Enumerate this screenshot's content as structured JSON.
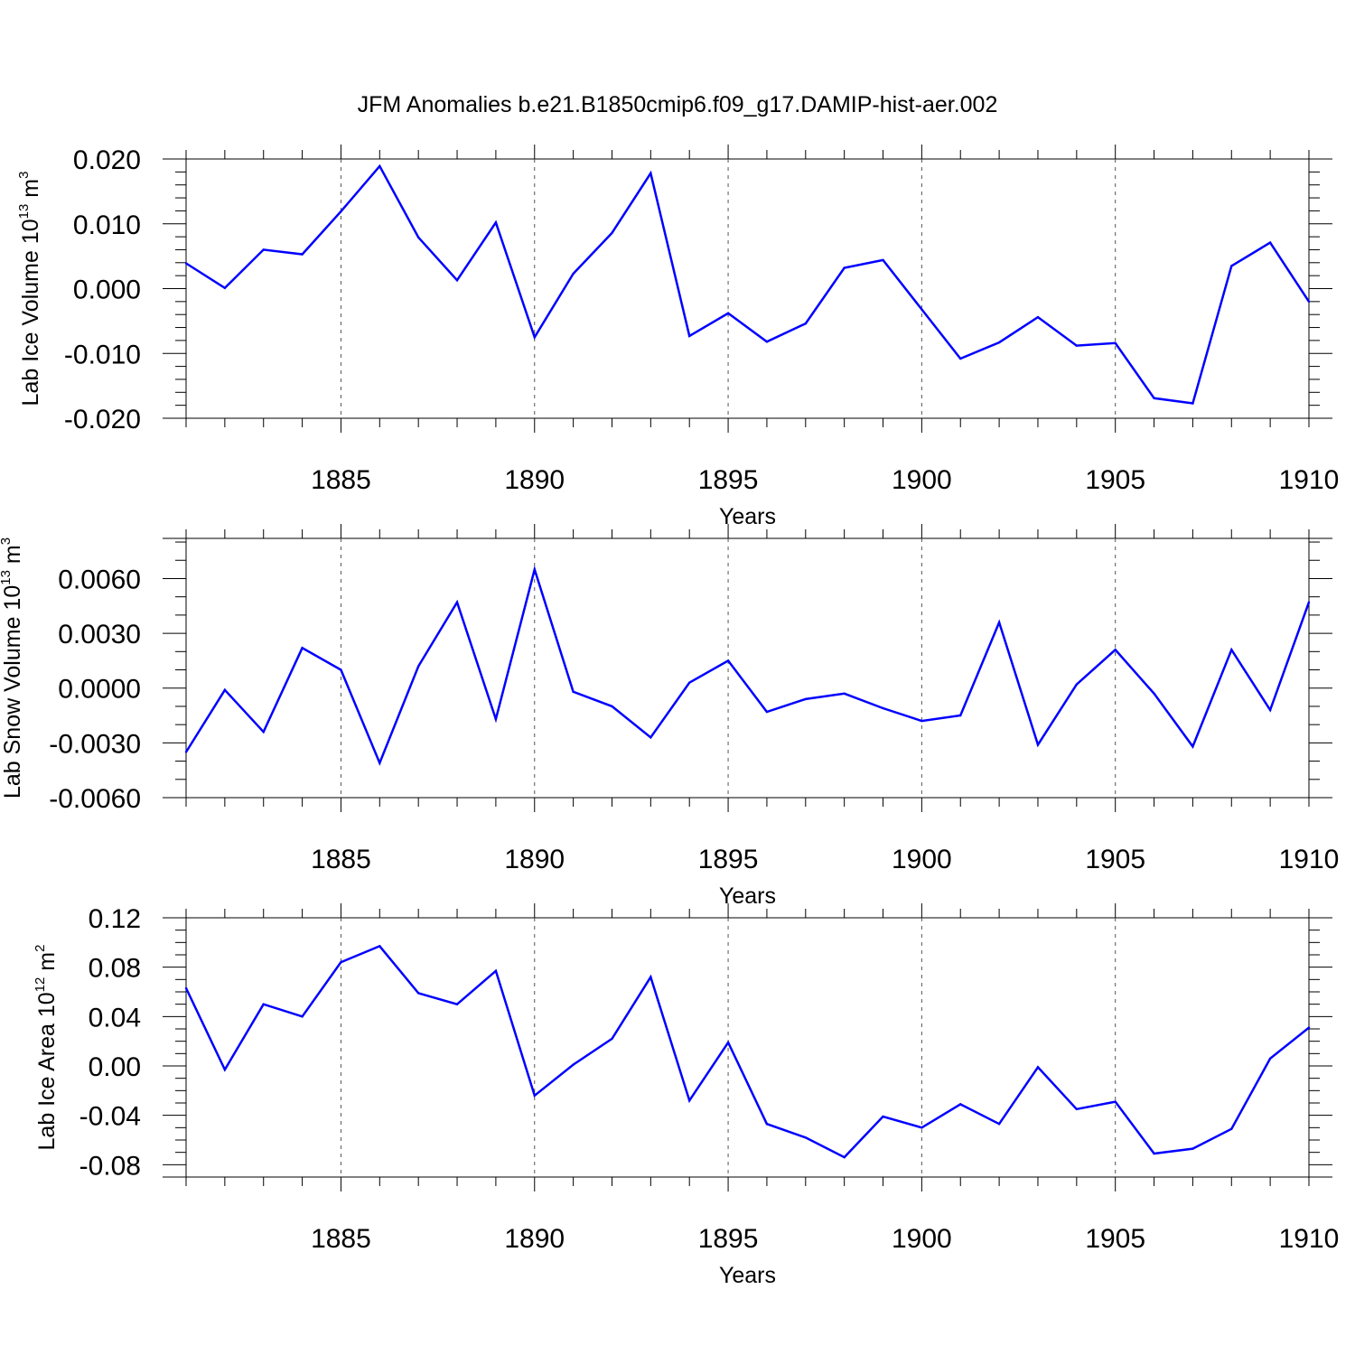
{
  "figure_title": "JFM Anomalies b.e21.B1850cmip6.f09_g17.DAMIP-hist-aer.002",
  "line_color": "#0000ff",
  "chart_data": [
    {
      "type": "line",
      "ylabel_main": "Lab Ice Volume 10",
      "ylabel_exp": "13",
      "ylabel_unit": " m",
      "ylabel_unit_exp": "3",
      "xlabel": "Years",
      "xlim": [
        1881,
        1910
      ],
      "ylim": [
        -0.02,
        0.02
      ],
      "x_ticks": [
        "1885",
        "1890",
        "1895",
        "1900",
        "1905",
        "1910"
      ],
      "y_ticks": [
        "0.020",
        "0.010",
        "0.000",
        "-0.010",
        "-0.020"
      ],
      "y_tick_values": [
        0.02,
        0.01,
        0.0,
        -0.01,
        -0.02
      ],
      "minor_y_step": 0.002,
      "x_grid": [
        1885,
        1890,
        1895,
        1900,
        1905
      ],
      "x": [
        1881,
        1882,
        1883,
        1884,
        1885,
        1886,
        1887,
        1888,
        1889,
        1890,
        1891,
        1892,
        1893,
        1894,
        1895,
        1896,
        1897,
        1898,
        1899,
        1900,
        1901,
        1902,
        1903,
        1904,
        1905,
        1906,
        1907,
        1908,
        1909,
        1910
      ],
      "values": [
        0.0039,
        0.0001,
        0.006,
        0.0053,
        0.0119,
        0.0189,
        0.0079,
        0.0013,
        0.0102,
        -0.0075,
        0.0023,
        0.0086,
        0.0178,
        -0.0073,
        -0.0038,
        -0.0082,
        -0.0054,
        0.0032,
        0.0044,
        -0.0032,
        -0.0108,
        -0.0083,
        -0.0044,
        -0.0088,
        -0.0084,
        -0.0169,
        -0.0177,
        0.0035,
        0.0071,
        -0.002
      ]
    },
    {
      "type": "line",
      "ylabel_main": "Lab Snow Volume 10",
      "ylabel_exp": "13",
      "ylabel_unit": " m",
      "ylabel_unit_exp": "3",
      "xlabel": "Years",
      "xlim": [
        1881,
        1910
      ],
      "ylim": [
        -0.006,
        0.0082
      ],
      "x_ticks": [
        "1885",
        "1890",
        "1895",
        "1900",
        "1905",
        "1910"
      ],
      "y_ticks": [
        "0.0060",
        "0.0030",
        "0.0000",
        "-0.0030",
        "-0.0060"
      ],
      "y_tick_values": [
        0.006,
        0.003,
        0.0,
        -0.003,
        -0.006
      ],
      "minor_y_step": 0.001,
      "x_grid": [
        1885,
        1890,
        1895,
        1900,
        1905
      ],
      "x": [
        1881,
        1882,
        1883,
        1884,
        1885,
        1886,
        1887,
        1888,
        1889,
        1890,
        1891,
        1892,
        1893,
        1894,
        1895,
        1896,
        1897,
        1898,
        1899,
        1900,
        1901,
        1902,
        1903,
        1904,
        1905,
        1906,
        1907,
        1908,
        1909,
        1910
      ],
      "values": [
        -0.0035,
        -0.0001,
        -0.0024,
        0.0022,
        0.001,
        -0.0041,
        0.0012,
        0.0047,
        -0.0017,
        0.0065,
        -0.0002,
        -0.001,
        -0.0027,
        0.0003,
        0.0015,
        -0.0013,
        -0.0006,
        -0.0003,
        -0.0011,
        -0.0018,
        -0.0015,
        0.0036,
        -0.0031,
        0.0002,
        0.0021,
        -0.0003,
        -0.0032,
        0.0021,
        -0.0012,
        0.0047
      ]
    },
    {
      "type": "line",
      "ylabel_main": "Lab Ice Area 10",
      "ylabel_exp": "12",
      "ylabel_unit": " m",
      "ylabel_unit_exp": "2",
      "xlabel": "Years",
      "xlim": [
        1881,
        1910
      ],
      "ylim": [
        -0.09,
        0.12
      ],
      "x_ticks": [
        "1885",
        "1890",
        "1895",
        "1900",
        "1905",
        "1910"
      ],
      "y_ticks": [
        "0.12",
        "0.08",
        "0.04",
        "0.00",
        "-0.04",
        "-0.08"
      ],
      "y_tick_values": [
        0.12,
        0.08,
        0.04,
        0.0,
        -0.04,
        -0.08
      ],
      "minor_y_step": 0.01,
      "x_grid": [
        1885,
        1890,
        1895,
        1900,
        1905
      ],
      "x": [
        1881,
        1882,
        1883,
        1884,
        1885,
        1886,
        1887,
        1888,
        1889,
        1890,
        1891,
        1892,
        1893,
        1894,
        1895,
        1896,
        1897,
        1898,
        1899,
        1900,
        1901,
        1902,
        1903,
        1904,
        1905,
        1906,
        1907,
        1908,
        1909,
        1910
      ],
      "values": [
        0.063,
        -0.003,
        0.05,
        0.04,
        0.084,
        0.097,
        0.059,
        0.05,
        0.077,
        -0.024,
        0.001,
        0.022,
        0.072,
        -0.028,
        0.019,
        -0.047,
        -0.058,
        -0.074,
        -0.041,
        -0.05,
        -0.031,
        -0.047,
        -0.001,
        -0.035,
        -0.029,
        -0.071,
        -0.067,
        -0.051,
        0.006,
        0.031
      ]
    }
  ]
}
